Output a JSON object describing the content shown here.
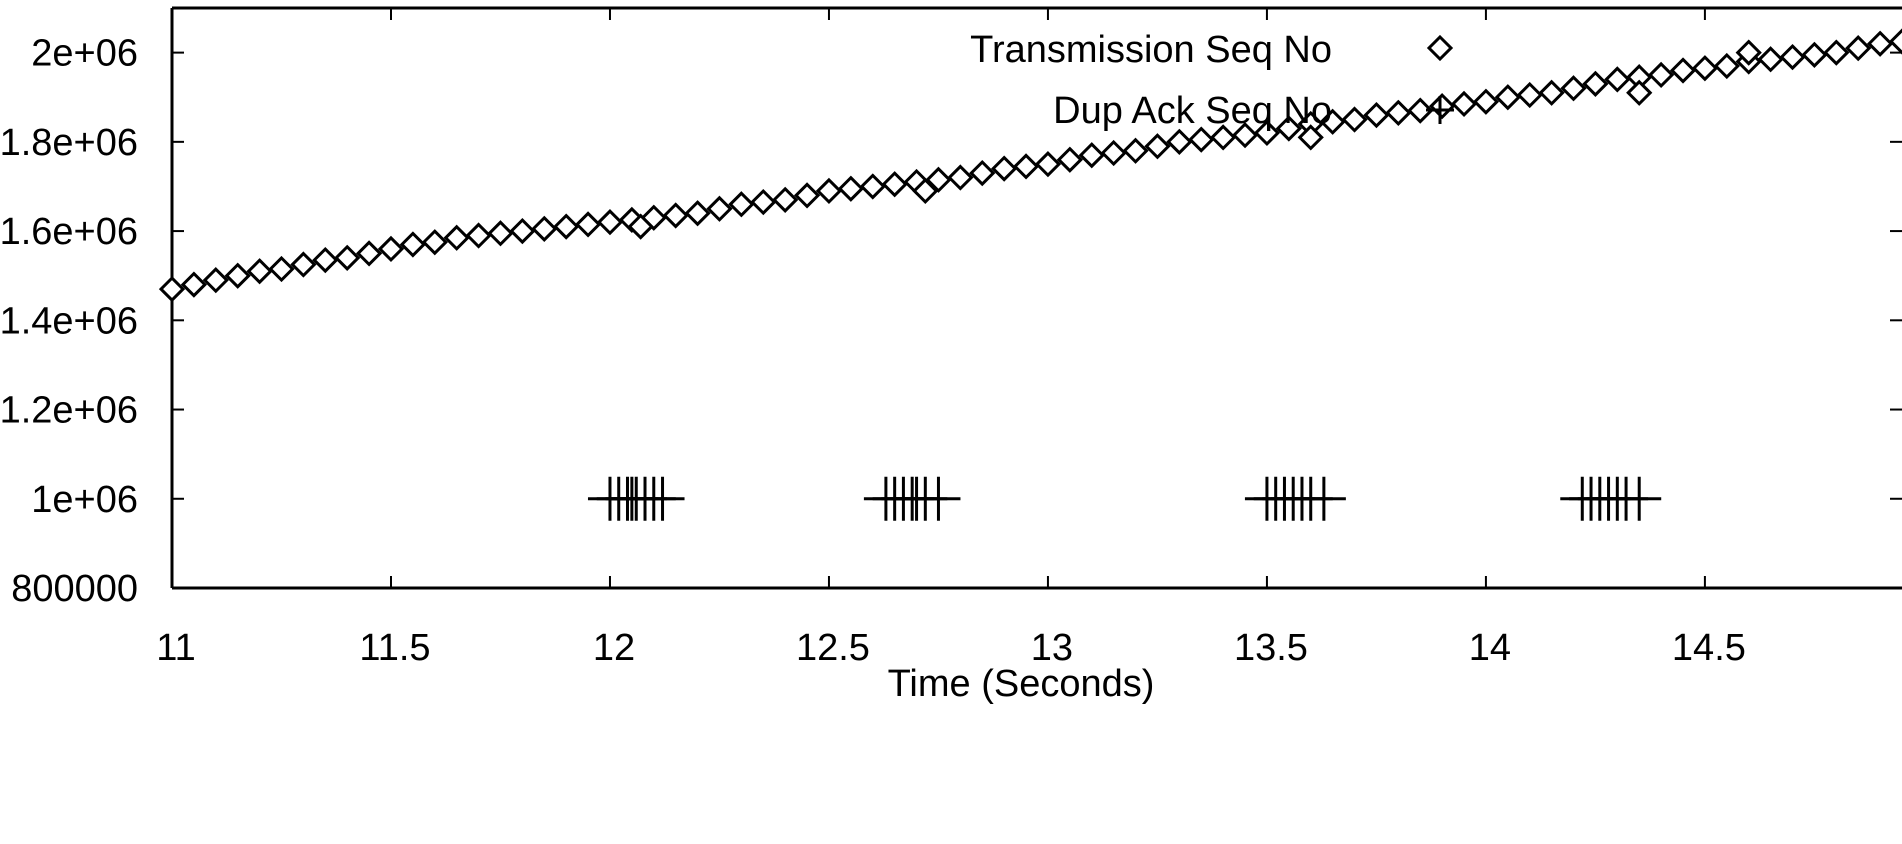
{
  "chart_data": {
    "type": "scatter",
    "title": "",
    "xlabel": "Time (Seconds)",
    "ylabel": "",
    "xlim": [
      11,
      14.95
    ],
    "ylim": [
      800000,
      2100000
    ],
    "x_ticks": [
      11,
      11.5,
      12,
      12.5,
      13,
      13.5,
      14,
      14.5
    ],
    "x_tick_labels": [
      "11",
      "11.5",
      "12",
      "12.5",
      "13",
      "13.5",
      "14",
      "14.5"
    ],
    "y_ticks": [
      800000,
      1000000,
      1200000,
      1400000,
      1600000,
      1800000,
      2000000
    ],
    "y_tick_labels": [
      "800000",
      "1e+06",
      "1.2e+06",
      "1.4e+06",
      "1.6e+06",
      "1.8e+06",
      "2e+06"
    ],
    "grid": false,
    "legend_position": "top-right",
    "colors": {
      "marks": "#000000",
      "axes": "#000000",
      "background": "#ffffff"
    },
    "series": [
      {
        "name": "Transmission Seq No",
        "marker": "diamond",
        "x": [
          11.0,
          11.05,
          11.1,
          11.15,
          11.2,
          11.25,
          11.3,
          11.35,
          11.4,
          11.45,
          11.5,
          11.55,
          11.6,
          11.65,
          11.7,
          11.75,
          11.8,
          11.85,
          11.9,
          11.95,
          12.0,
          12.05,
          12.1,
          12.15,
          12.2,
          12.25,
          12.3,
          12.35,
          12.4,
          12.45,
          12.5,
          12.55,
          12.6,
          12.65,
          12.7,
          12.75,
          12.8,
          12.85,
          12.9,
          12.95,
          13.0,
          13.05,
          13.1,
          13.15,
          13.2,
          13.25,
          13.3,
          13.35,
          13.4,
          13.45,
          13.5,
          13.55,
          13.6,
          13.65,
          13.7,
          13.75,
          13.8,
          13.85,
          13.9,
          13.95,
          14.0,
          14.05,
          14.1,
          14.15,
          14.2,
          14.25,
          14.3,
          14.35,
          14.4,
          14.45,
          14.5,
          14.55,
          14.6,
          14.65,
          14.7,
          14.75,
          14.8,
          14.85,
          14.9,
          14.95,
          12.07,
          12.72,
          13.6,
          14.35,
          14.6
        ],
        "y": [
          1470000,
          1480000,
          1490000,
          1500000,
          1510000,
          1515000,
          1525000,
          1535000,
          1540000,
          1550000,
          1560000,
          1570000,
          1575000,
          1585000,
          1590000,
          1595000,
          1600000,
          1605000,
          1610000,
          1615000,
          1620000,
          1625000,
          1630000,
          1635000,
          1640000,
          1650000,
          1660000,
          1665000,
          1670000,
          1680000,
          1690000,
          1695000,
          1700000,
          1705000,
          1710000,
          1715000,
          1720000,
          1730000,
          1740000,
          1745000,
          1750000,
          1760000,
          1770000,
          1775000,
          1780000,
          1790000,
          1800000,
          1805000,
          1810000,
          1815000,
          1820000,
          1830000,
          1840000,
          1845000,
          1850000,
          1860000,
          1865000,
          1870000,
          1880000,
          1885000,
          1890000,
          1900000,
          1905000,
          1910000,
          1920000,
          1930000,
          1940000,
          1945000,
          1950000,
          1960000,
          1965000,
          1970000,
          1980000,
          1985000,
          1990000,
          1995000,
          2000000,
          2010000,
          2020000,
          2025000,
          1610000,
          1690000,
          1810000,
          1910000,
          2000000
        ]
      },
      {
        "name": "Dup Ack Seq No",
        "marker": "plus",
        "x": [
          12.0,
          12.02,
          12.04,
          12.05,
          12.06,
          12.08,
          12.1,
          12.12,
          12.63,
          12.65,
          12.67,
          12.69,
          12.7,
          12.72,
          12.75,
          13.5,
          13.52,
          13.54,
          13.56,
          13.58,
          13.6,
          13.63,
          14.22,
          14.24,
          14.26,
          14.28,
          14.3,
          14.32,
          14.35
        ],
        "y": [
          1000000,
          1000000,
          1000000,
          1000000,
          1000000,
          1000000,
          1000000,
          1000000,
          1000000,
          1000000,
          1000000,
          1000000,
          1000000,
          1000000,
          1000000,
          1000000,
          1000000,
          1000000,
          1000000,
          1000000,
          1000000,
          1000000,
          1000000,
          1000000,
          1000000,
          1000000,
          1000000,
          1000000,
          1000000
        ]
      }
    ]
  }
}
